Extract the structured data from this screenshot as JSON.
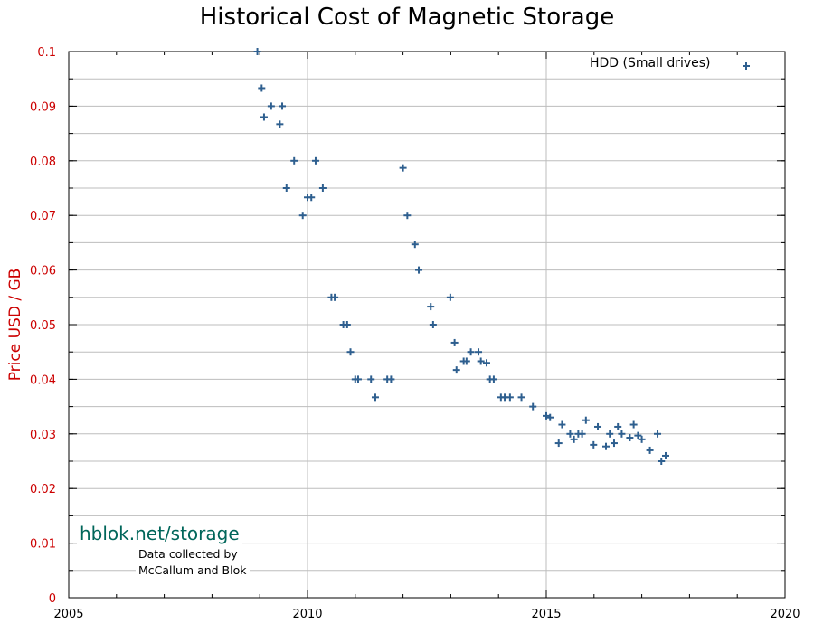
{
  "chart_data": {
    "type": "scatter",
    "title": "Historical Cost of Magnetic Storage",
    "ylabel": "Price USD / GB",
    "xlabel": "",
    "xlim": [
      2005,
      2020
    ],
    "ylim": [
      0,
      0.1
    ],
    "x_ticks": [
      "2005",
      "2010",
      "2015",
      "2020"
    ],
    "y_ticks": [
      "0",
      "0.01",
      "0.02",
      "0.03",
      "0.04",
      "0.05",
      "0.06",
      "0.07",
      "0.08",
      "0.09",
      "0.1"
    ],
    "grid": true,
    "legend_position": "top-right",
    "series": [
      {
        "name": "HDD (Small drives)",
        "color": "#2e5f8f",
        "marker": "plus",
        "points": [
          [
            2008.95,
            0.1
          ],
          [
            2009.04,
            0.0933
          ],
          [
            2009.09,
            0.088
          ],
          [
            2009.24,
            0.09
          ],
          [
            2009.42,
            0.0867
          ],
          [
            2009.47,
            0.09
          ],
          [
            2009.56,
            0.075
          ],
          [
            2009.72,
            0.08
          ],
          [
            2009.9,
            0.07
          ],
          [
            2010.0,
            0.0733
          ],
          [
            2010.08,
            0.0733
          ],
          [
            2010.17,
            0.08
          ],
          [
            2010.32,
            0.075
          ],
          [
            2010.5,
            0.055
          ],
          [
            2010.57,
            0.055
          ],
          [
            2010.75,
            0.05
          ],
          [
            2010.83,
            0.05
          ],
          [
            2010.9,
            0.045
          ],
          [
            2011.0,
            0.04
          ],
          [
            2011.06,
            0.04
          ],
          [
            2011.33,
            0.04
          ],
          [
            2011.42,
            0.0367
          ],
          [
            2011.67,
            0.04
          ],
          [
            2011.75,
            0.04
          ],
          [
            2012.0,
            0.0787
          ],
          [
            2012.09,
            0.07
          ],
          [
            2012.25,
            0.0647
          ],
          [
            2012.33,
            0.06
          ],
          [
            2012.58,
            0.0533
          ],
          [
            2012.63,
            0.05
          ],
          [
            2012.99,
            0.055
          ],
          [
            2013.08,
            0.0467
          ],
          [
            2013.12,
            0.0417
          ],
          [
            2013.27,
            0.0433
          ],
          [
            2013.33,
            0.0433
          ],
          [
            2013.42,
            0.045
          ],
          [
            2013.58,
            0.045
          ],
          [
            2013.63,
            0.0433
          ],
          [
            2013.75,
            0.043
          ],
          [
            2013.82,
            0.04
          ],
          [
            2013.9,
            0.04
          ],
          [
            2014.05,
            0.0367
          ],
          [
            2014.13,
            0.0367
          ],
          [
            2014.24,
            0.0367
          ],
          [
            2014.48,
            0.0367
          ],
          [
            2014.72,
            0.035
          ],
          [
            2015.0,
            0.0333
          ],
          [
            2015.08,
            0.033
          ],
          [
            2015.26,
            0.0283
          ],
          [
            2015.33,
            0.0317
          ],
          [
            2015.5,
            0.03
          ],
          [
            2015.58,
            0.029
          ],
          [
            2015.67,
            0.03
          ],
          [
            2015.75,
            0.03
          ],
          [
            2015.83,
            0.0325
          ],
          [
            2015.99,
            0.028
          ],
          [
            2016.08,
            0.0313
          ],
          [
            2016.25,
            0.0277
          ],
          [
            2016.33,
            0.03
          ],
          [
            2016.42,
            0.0283
          ],
          [
            2016.5,
            0.0313
          ],
          [
            2016.58,
            0.03
          ],
          [
            2016.75,
            0.0293
          ],
          [
            2016.83,
            0.0317
          ],
          [
            2016.92,
            0.0297
          ],
          [
            2017.0,
            0.029
          ],
          [
            2017.17,
            0.027
          ],
          [
            2017.33,
            0.03
          ],
          [
            2017.41,
            0.025
          ],
          [
            2017.5,
            0.026
          ]
        ]
      }
    ]
  },
  "watermark": {
    "site": "hblok.net/storage",
    "credit_line1": "Data collected by",
    "credit_line2": "McCallum and Blok"
  }
}
